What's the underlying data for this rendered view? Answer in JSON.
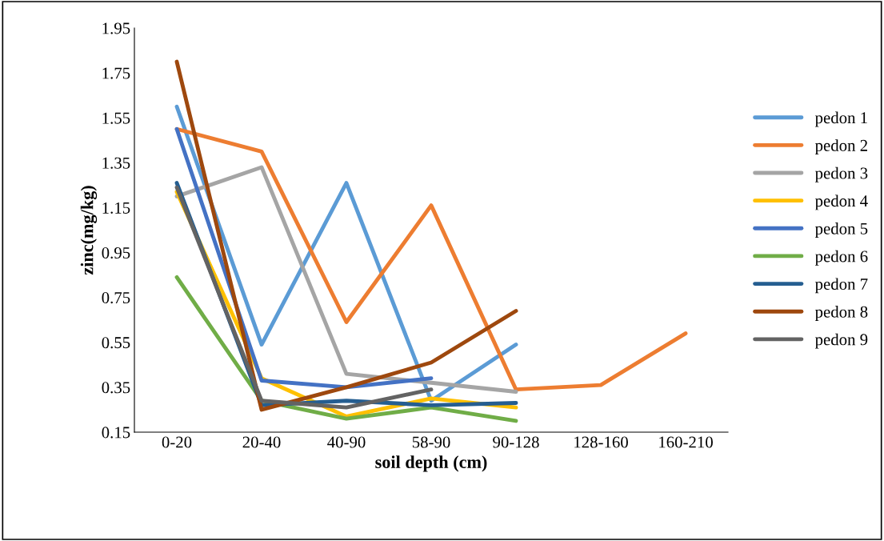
{
  "chart_data": {
    "type": "line",
    "xlabel": "soil depth (cm)",
    "ylabel": "zinc(mg/kg)",
    "categories": [
      "0-20",
      "20-40",
      "40-90",
      "58-90",
      "90-128",
      "128-160",
      "160-210"
    ],
    "ylim": [
      0.15,
      1.95
    ],
    "yticks": [
      {
        "value": 0.15,
        "label": "0.15"
      },
      {
        "value": 0.35,
        "label": "0.35"
      },
      {
        "value": 0.55,
        "label": "0.55"
      },
      {
        "value": 0.75,
        "label": "0.75"
      },
      {
        "value": 0.95,
        "label": "0.95"
      },
      {
        "value": 1.15,
        "label": "1.15"
      },
      {
        "value": 1.35,
        "label": "1.35"
      },
      {
        "value": 1.55,
        "label": "1.55"
      },
      {
        "value": 1.75,
        "label": "1.75"
      },
      {
        "value": 1.95,
        "label": "1.95"
      }
    ],
    "grid": false,
    "legend": "right",
    "marker": "none",
    "series": [
      {
        "name": "pedon 1",
        "color": "#5b9bd5",
        "values": [
          1.6,
          0.54,
          1.26,
          0.29,
          0.54,
          null,
          null
        ]
      },
      {
        "name": "pedon 2",
        "color": "#ed7d31",
        "values": [
          1.5,
          1.4,
          0.64,
          1.16,
          0.34,
          0.36,
          0.59
        ]
      },
      {
        "name": "pedon 3",
        "color": "#a5a5a5",
        "values": [
          1.2,
          1.33,
          0.41,
          0.37,
          0.33,
          null,
          null
        ]
      },
      {
        "name": "pedon 4",
        "color": "#ffc000",
        "values": [
          1.22,
          0.39,
          0.22,
          0.3,
          0.26,
          null,
          null
        ]
      },
      {
        "name": "pedon 5",
        "color": "#4472c4",
        "values": [
          1.5,
          0.38,
          0.35,
          0.39,
          null,
          null,
          null
        ]
      },
      {
        "name": "pedon 6",
        "color": "#70ad47",
        "values": [
          0.84,
          0.29,
          0.21,
          0.26,
          0.2,
          null,
          null
        ]
      },
      {
        "name": "pedon 7",
        "color": "#255e91",
        "values": [
          1.26,
          0.27,
          0.29,
          0.27,
          0.28,
          null,
          null
        ]
      },
      {
        "name": "pedon 8",
        "color": "#9e480e",
        "values": [
          1.8,
          0.25,
          0.35,
          0.46,
          0.69,
          null,
          null
        ]
      },
      {
        "name": "pedon 9",
        "color": "#636363",
        "values": [
          1.24,
          0.29,
          0.26,
          0.34,
          null,
          null,
          null
        ]
      }
    ]
  }
}
